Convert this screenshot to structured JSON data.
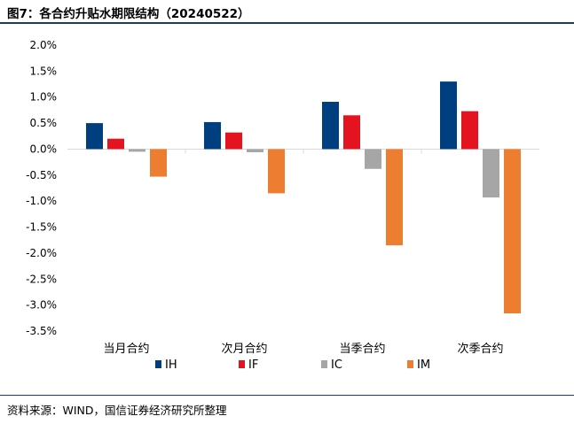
{
  "figure": {
    "title": "图7：各合约升贴水期限结构（20240522）",
    "source": "资料来源：WIND，国信证券经济研究所整理"
  },
  "chart_data": {
    "type": "bar",
    "categories": [
      "当月合约",
      "次月合约",
      "当季合约",
      "次季合约"
    ],
    "series": [
      {
        "name": "IH",
        "color": "#003f7f",
        "values": [
          0.5,
          0.52,
          0.91,
          1.3
        ]
      },
      {
        "name": "IF",
        "color": "#e3141f",
        "values": [
          0.2,
          0.32,
          0.65,
          0.73
        ]
      },
      {
        "name": "IC",
        "color": "#a6a6a6",
        "values": [
          -0.05,
          -0.06,
          -0.38,
          -0.93
        ]
      },
      {
        "name": "IM",
        "color": "#ed7d31",
        "values": [
          -0.53,
          -0.85,
          -1.85,
          -3.16
        ]
      }
    ],
    "yticks": [
      "2.0%",
      "1.5%",
      "1.0%",
      "0.5%",
      "0.0%",
      "-0.5%",
      "-1.0%",
      "-1.5%",
      "-2.0%",
      "-2.5%",
      "-3.0%",
      "-3.5%"
    ],
    "ylim": [
      -3.5,
      2.0
    ],
    "ytick_step": 0.5,
    "legend_position": "bottom",
    "grid": false
  }
}
